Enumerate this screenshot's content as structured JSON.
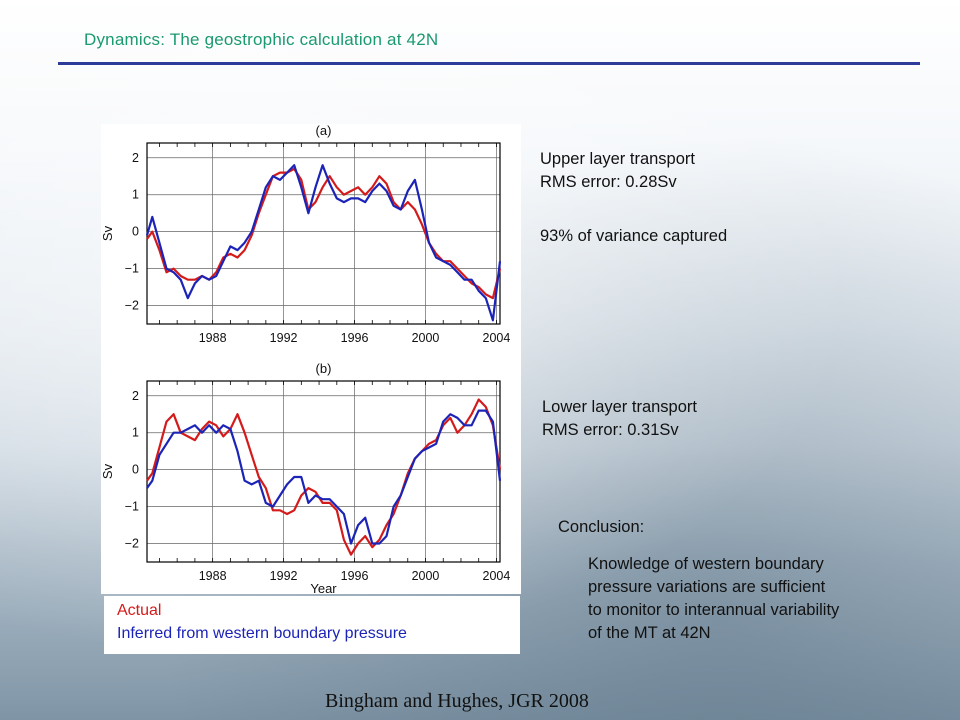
{
  "slide": {
    "title": "Dynamics: The geostrophic calculation at 42N",
    "caption": "Bingham and Hughes, JGR 2008",
    "accent_color": "#1a9a6e",
    "rule_color": "#2d3c9a"
  },
  "panel_a_text": {
    "line1": "Upper layer transport",
    "line2": "RMS error: 0.28Sv",
    "line3": "93% of variance captured"
  },
  "panel_b_text": {
    "line1": "Lower layer transport",
    "line2": "RMS error: 0.31Sv"
  },
  "conclusion": {
    "heading": "Conclusion:",
    "lines": [
      "Knowledge of western boundary",
      "pressure variations are sufficient",
      "to monitor to interannual variability",
      "of the MT at 42N"
    ]
  },
  "legend": {
    "actual": "Actual",
    "inferred": "Inferred from western boundary pressure",
    "actual_color": "#d41b1b",
    "inferred_color": "#1c24b8"
  },
  "chart_data": [
    {
      "type": "line",
      "panel_label": "(a)",
      "ylabel": "Sv",
      "xlabel": "",
      "xlim": [
        1984.3,
        2004.2
      ],
      "ylim": [
        -2.5,
        2.4
      ],
      "xticks": [
        1988,
        1992,
        1996,
        2000,
        2004
      ],
      "yticks": [
        -2,
        -1,
        0,
        1,
        2
      ],
      "ytick_labels": [
        "−2",
        "−1",
        "0",
        "1",
        "2"
      ],
      "grid": true,
      "series": [
        {
          "name": "Actual",
          "color": "#d41b1b",
          "x": [
            1984.3,
            1984.6,
            1985.0,
            1985.4,
            1985.8,
            1986.2,
            1986.6,
            1987.0,
            1987.4,
            1987.8,
            1988.2,
            1988.6,
            1989.0,
            1989.4,
            1989.8,
            1990.2,
            1990.6,
            1991.0,
            1991.4,
            1991.8,
            1992.2,
            1992.6,
            1993.0,
            1993.4,
            1993.8,
            1994.2,
            1994.6,
            1995.0,
            1995.4,
            1995.8,
            1996.2,
            1996.6,
            1997.0,
            1997.4,
            1997.8,
            1998.2,
            1998.6,
            1999.0,
            1999.4,
            1999.8,
            2000.2,
            2000.6,
            2001.0,
            2001.4,
            2001.8,
            2002.2,
            2002.6,
            2003.0,
            2003.4,
            2003.8,
            2004.2
          ],
          "y": [
            -0.2,
            0.0,
            -0.5,
            -1.1,
            -1.0,
            -1.2,
            -1.3,
            -1.3,
            -1.2,
            -1.3,
            -1.1,
            -0.7,
            -0.6,
            -0.7,
            -0.5,
            -0.1,
            0.5,
            1.0,
            1.5,
            1.6,
            1.6,
            1.7,
            1.4,
            0.6,
            0.8,
            1.2,
            1.5,
            1.2,
            1.0,
            1.1,
            1.2,
            1.0,
            1.2,
            1.5,
            1.3,
            0.8,
            0.6,
            0.8,
            0.6,
            0.2,
            -0.3,
            -0.6,
            -0.8,
            -0.8,
            -1.0,
            -1.2,
            -1.4,
            -1.5,
            -1.7,
            -1.8,
            -1.0
          ]
        },
        {
          "name": "Inferred from western boundary pressure",
          "color": "#1c24b8",
          "x": [
            1984.3,
            1984.6,
            1985.0,
            1985.4,
            1985.8,
            1986.2,
            1986.6,
            1987.0,
            1987.4,
            1987.8,
            1988.2,
            1988.6,
            1989.0,
            1989.4,
            1989.8,
            1990.2,
            1990.6,
            1991.0,
            1991.4,
            1991.8,
            1992.2,
            1992.6,
            1993.0,
            1993.4,
            1993.8,
            1994.2,
            1994.6,
            1995.0,
            1995.4,
            1995.8,
            1996.2,
            1996.6,
            1997.0,
            1997.4,
            1997.8,
            1998.2,
            1998.6,
            1999.0,
            1999.4,
            1999.8,
            2000.2,
            2000.6,
            2001.0,
            2001.4,
            2001.8,
            2002.2,
            2002.6,
            2003.0,
            2003.4,
            2003.8,
            2004.2
          ],
          "y": [
            -0.1,
            0.4,
            -0.3,
            -1.0,
            -1.1,
            -1.3,
            -1.8,
            -1.4,
            -1.2,
            -1.3,
            -1.2,
            -0.8,
            -0.4,
            -0.5,
            -0.3,
            0.0,
            0.6,
            1.2,
            1.5,
            1.4,
            1.6,
            1.8,
            1.2,
            0.5,
            1.2,
            1.8,
            1.3,
            0.9,
            0.8,
            0.9,
            0.9,
            0.8,
            1.1,
            1.3,
            1.1,
            0.7,
            0.6,
            1.1,
            1.4,
            0.6,
            -0.3,
            -0.7,
            -0.8,
            -0.9,
            -1.1,
            -1.3,
            -1.3,
            -1.6,
            -1.8,
            -2.4,
            -0.8
          ]
        }
      ]
    },
    {
      "type": "line",
      "panel_label": "(b)",
      "ylabel": "Sv",
      "xlabel": "Year",
      "xlim": [
        1984.3,
        2004.2
      ],
      "ylim": [
        -2.5,
        2.4
      ],
      "xticks": [
        1988,
        1992,
        1996,
        2000,
        2004
      ],
      "yticks": [
        -2,
        -1,
        0,
        1,
        2
      ],
      "ytick_labels": [
        "−2",
        "−1",
        "0",
        "1",
        "2"
      ],
      "grid": true,
      "series": [
        {
          "name": "Actual",
          "color": "#d41b1b",
          "x": [
            1984.3,
            1984.6,
            1985.0,
            1985.4,
            1985.8,
            1986.2,
            1986.6,
            1987.0,
            1987.4,
            1987.8,
            1988.2,
            1988.6,
            1989.0,
            1989.4,
            1989.8,
            1990.2,
            1990.6,
            1991.0,
            1991.4,
            1991.8,
            1992.2,
            1992.6,
            1993.0,
            1993.4,
            1993.8,
            1994.2,
            1994.6,
            1995.0,
            1995.4,
            1995.8,
            1996.2,
            1996.6,
            1997.0,
            1997.4,
            1997.8,
            1998.2,
            1998.6,
            1999.0,
            1999.4,
            1999.8,
            2000.2,
            2000.6,
            2001.0,
            2001.4,
            2001.8,
            2002.2,
            2002.6,
            2003.0,
            2003.4,
            2003.8,
            2004.2
          ],
          "y": [
            -0.3,
            -0.1,
            0.6,
            1.3,
            1.5,
            1.0,
            0.9,
            0.8,
            1.1,
            1.3,
            1.2,
            0.9,
            1.1,
            1.5,
            1.0,
            0.4,
            -0.2,
            -0.5,
            -1.1,
            -1.1,
            -1.2,
            -1.1,
            -0.7,
            -0.5,
            -0.6,
            -0.9,
            -0.9,
            -1.1,
            -1.9,
            -2.3,
            -2.0,
            -1.8,
            -2.1,
            -1.9,
            -1.5,
            -1.2,
            -0.7,
            -0.1,
            0.3,
            0.5,
            0.7,
            0.8,
            1.2,
            1.4,
            1.0,
            1.2,
            1.5,
            1.9,
            1.7,
            1.2,
            0.0
          ]
        },
        {
          "name": "Inferred from western boundary pressure",
          "color": "#1c24b8",
          "x": [
            1984.3,
            1984.6,
            1985.0,
            1985.4,
            1985.8,
            1986.2,
            1986.6,
            1987.0,
            1987.4,
            1987.8,
            1988.2,
            1988.6,
            1989.0,
            1989.4,
            1989.8,
            1990.2,
            1990.6,
            1991.0,
            1991.4,
            1991.8,
            1992.2,
            1992.6,
            1993.0,
            1993.4,
            1993.8,
            1994.2,
            1994.6,
            1995.0,
            1995.4,
            1995.8,
            1996.2,
            1996.6,
            1997.0,
            1997.4,
            1997.8,
            1998.2,
            1998.6,
            1999.0,
            1999.4,
            1999.8,
            2000.2,
            2000.6,
            2001.0,
            2001.4,
            2001.8,
            2002.2,
            2002.6,
            2003.0,
            2003.4,
            2003.8,
            2004.2
          ],
          "y": [
            -0.5,
            -0.3,
            0.4,
            0.7,
            1.0,
            1.0,
            1.1,
            1.2,
            1.0,
            1.2,
            1.0,
            1.2,
            1.1,
            0.5,
            -0.3,
            -0.4,
            -0.3,
            -0.9,
            -1.0,
            -0.7,
            -0.4,
            -0.2,
            -0.2,
            -0.9,
            -0.7,
            -0.8,
            -0.8,
            -1.0,
            -1.2,
            -2.0,
            -1.5,
            -1.3,
            -2.0,
            -2.0,
            -1.8,
            -1.0,
            -0.7,
            -0.2,
            0.3,
            0.5,
            0.6,
            0.7,
            1.3,
            1.5,
            1.4,
            1.2,
            1.2,
            1.6,
            1.6,
            1.3,
            -0.3
          ]
        }
      ]
    }
  ]
}
